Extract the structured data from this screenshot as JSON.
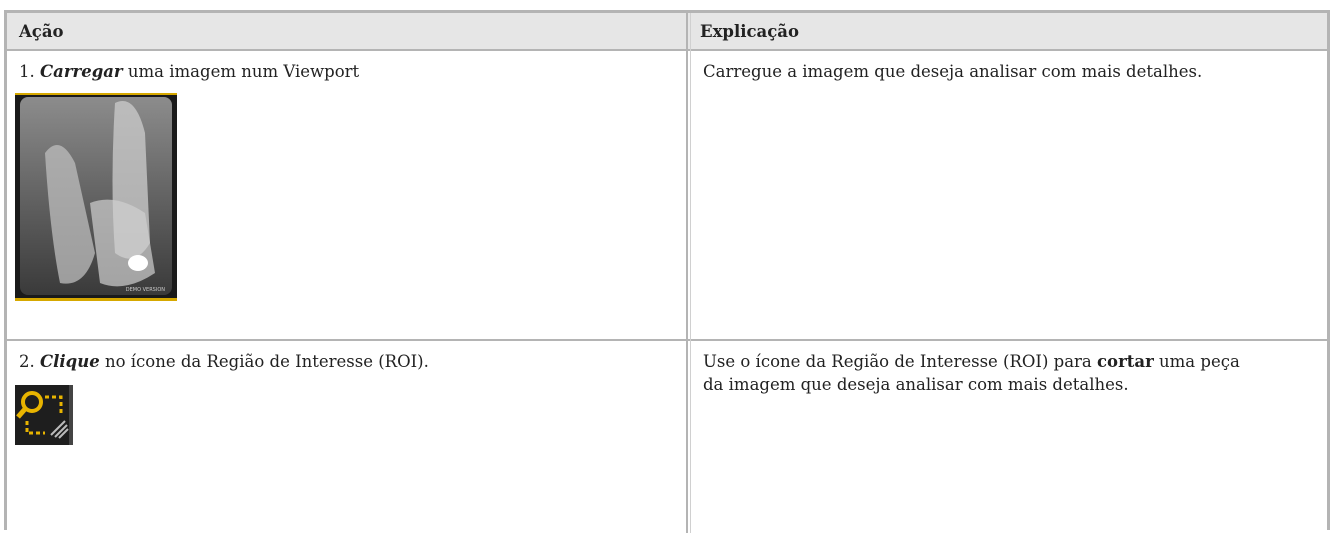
{
  "table": {
    "header": [
      "Ação",
      "Explicação"
    ],
    "rows": [
      {
        "action": {
          "number": "1.",
          "emphasis": "Carregar",
          "text": "uma imagem num Viewport"
        },
        "image": {
          "watermark": "DEMO VERSION"
        },
        "explanation": {
          "before": "Carregue a imagem que deseja analisar com mais detalhes."
        }
      },
      {
        "action": {
          "number": "2.",
          "emphasis": "Clique",
          "text": "no ícone da Região de Interesse (ROI)."
        },
        "explanation": {
          "before": "Use o ícone da Região de Interesse (ROI) para",
          "bold": "cortar",
          "after": "uma peça da imagem que deseja analisar com mais detalhes."
        }
      }
    ]
  }
}
